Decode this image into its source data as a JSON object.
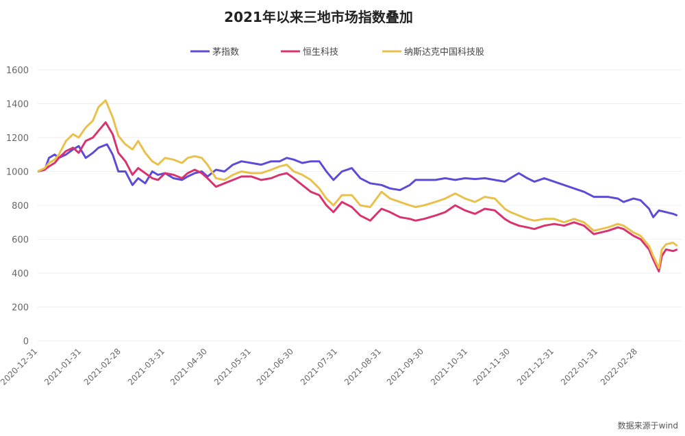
{
  "chart_data": {
    "type": "line",
    "title": "2021年以来三地市场指数叠加",
    "source": "数据来源于wind",
    "ylim": [
      0,
      1600
    ],
    "yticks": [
      0,
      200,
      400,
      600,
      800,
      1000,
      1200,
      1400,
      1600
    ],
    "legend_position": "top",
    "grid": "horizontal",
    "x_tick_labels": [
      "2020-12-31",
      "2021-01-31",
      "2021-02-28",
      "2021-03-31",
      "2021-04-30",
      "2021-05-31",
      "2021-06-30",
      "2021-07-31",
      "2021-08-31",
      "2021-09-30",
      "2021-10-31",
      "2021-11-30",
      "2021-12-31",
      "2022-01-31",
      "2022-02-28"
    ],
    "series": [
      {
        "name": "茅指数",
        "color": "#5b4bd6",
        "points": [
          [
            "2020-12-31",
            1000
          ],
          [
            "2021-01-05",
            1010
          ],
          [
            "2021-01-08",
            1080
          ],
          [
            "2021-01-12",
            1100
          ],
          [
            "2021-01-15",
            1080
          ],
          [
            "2021-01-20",
            1100
          ],
          [
            "2021-01-25",
            1130
          ],
          [
            "2021-01-29",
            1150
          ],
          [
            "2021-02-03",
            1080
          ],
          [
            "2021-02-08",
            1110
          ],
          [
            "2021-02-12",
            1140
          ],
          [
            "2021-02-18",
            1160
          ],
          [
            "2021-02-22",
            1100
          ],
          [
            "2021-02-26",
            1000
          ],
          [
            "2021-03-03",
            1000
          ],
          [
            "2021-03-08",
            920
          ],
          [
            "2021-03-12",
            960
          ],
          [
            "2021-03-17",
            930
          ],
          [
            "2021-03-22",
            1000
          ],
          [
            "2021-03-26",
            980
          ],
          [
            "2021-03-31",
            990
          ],
          [
            "2021-04-06",
            960
          ],
          [
            "2021-04-12",
            950
          ],
          [
            "2021-04-16",
            970
          ],
          [
            "2021-04-21",
            990
          ],
          [
            "2021-04-26",
            1000
          ],
          [
            "2021-04-30",
            970
          ],
          [
            "2021-05-06",
            1010
          ],
          [
            "2021-05-12",
            1000
          ],
          [
            "2021-05-18",
            1040
          ],
          [
            "2021-05-24",
            1060
          ],
          [
            "2021-05-31",
            1050
          ],
          [
            "2021-06-07",
            1040
          ],
          [
            "2021-06-14",
            1060
          ],
          [
            "2021-06-20",
            1060
          ],
          [
            "2021-06-25",
            1080
          ],
          [
            "2021-06-30",
            1070
          ],
          [
            "2021-07-06",
            1050
          ],
          [
            "2021-07-12",
            1060
          ],
          [
            "2021-07-18",
            1060
          ],
          [
            "2021-07-23",
            1000
          ],
          [
            "2021-07-28",
            950
          ],
          [
            "2021-08-03",
            1000
          ],
          [
            "2021-08-10",
            1020
          ],
          [
            "2021-08-16",
            960
          ],
          [
            "2021-08-23",
            930
          ],
          [
            "2021-08-31",
            920
          ],
          [
            "2021-09-06",
            900
          ],
          [
            "2021-09-13",
            890
          ],
          [
            "2021-09-20",
            920
          ],
          [
            "2021-09-24",
            950
          ],
          [
            "2021-09-30",
            950
          ],
          [
            "2021-10-08",
            950
          ],
          [
            "2021-10-15",
            960
          ],
          [
            "2021-10-22",
            950
          ],
          [
            "2021-10-29",
            960
          ],
          [
            "2021-11-05",
            955
          ],
          [
            "2021-11-12",
            960
          ],
          [
            "2021-11-19",
            950
          ],
          [
            "2021-11-26",
            940
          ],
          [
            "2021-11-30",
            960
          ],
          [
            "2021-12-06",
            990
          ],
          [
            "2021-12-12",
            960
          ],
          [
            "2021-12-17",
            940
          ],
          [
            "2021-12-24",
            960
          ],
          [
            "2021-12-31",
            940
          ],
          [
            "2022-01-07",
            920
          ],
          [
            "2022-01-14",
            900
          ],
          [
            "2022-01-21",
            880
          ],
          [
            "2022-01-28",
            850
          ],
          [
            "2022-02-07",
            850
          ],
          [
            "2022-02-14",
            840
          ],
          [
            "2022-02-18",
            820
          ],
          [
            "2022-02-25",
            840
          ],
          [
            "2022-03-02",
            830
          ],
          [
            "2022-03-08",
            780
          ],
          [
            "2022-03-11",
            730
          ],
          [
            "2022-03-15",
            770
          ],
          [
            "2022-03-20",
            760
          ],
          [
            "2022-03-25",
            750
          ],
          [
            "2022-03-28",
            740
          ]
        ]
      },
      {
        "name": "恒生科技",
        "color": "#d8336f",
        "points": [
          [
            "2020-12-31",
            1000
          ],
          [
            "2021-01-05",
            1010
          ],
          [
            "2021-01-08",
            1030
          ],
          [
            "2021-01-12",
            1050
          ],
          [
            "2021-01-15",
            1080
          ],
          [
            "2021-01-20",
            1120
          ],
          [
            "2021-01-25",
            1140
          ],
          [
            "2021-01-29",
            1110
          ],
          [
            "2021-02-03",
            1180
          ],
          [
            "2021-02-08",
            1200
          ],
          [
            "2021-02-12",
            1240
          ],
          [
            "2021-02-17",
            1290
          ],
          [
            "2021-02-22",
            1220
          ],
          [
            "2021-02-26",
            1110
          ],
          [
            "2021-03-03",
            1060
          ],
          [
            "2021-03-08",
            980
          ],
          [
            "2021-03-12",
            1020
          ],
          [
            "2021-03-17",
            990
          ],
          [
            "2021-03-22",
            960
          ],
          [
            "2021-03-26",
            950
          ],
          [
            "2021-03-31",
            990
          ],
          [
            "2021-04-06",
            980
          ],
          [
            "2021-04-12",
            960
          ],
          [
            "2021-04-16",
            990
          ],
          [
            "2021-04-21",
            1010
          ],
          [
            "2021-04-26",
            990
          ],
          [
            "2021-04-30",
            960
          ],
          [
            "2021-05-06",
            910
          ],
          [
            "2021-05-12",
            930
          ],
          [
            "2021-05-18",
            950
          ],
          [
            "2021-05-24",
            970
          ],
          [
            "2021-05-31",
            970
          ],
          [
            "2021-06-07",
            950
          ],
          [
            "2021-06-14",
            960
          ],
          [
            "2021-06-20",
            980
          ],
          [
            "2021-06-25",
            990
          ],
          [
            "2021-06-30",
            960
          ],
          [
            "2021-07-06",
            920
          ],
          [
            "2021-07-12",
            880
          ],
          [
            "2021-07-18",
            860
          ],
          [
            "2021-07-23",
            800
          ],
          [
            "2021-07-28",
            760
          ],
          [
            "2021-08-03",
            820
          ],
          [
            "2021-08-10",
            790
          ],
          [
            "2021-08-16",
            740
          ],
          [
            "2021-08-23",
            710
          ],
          [
            "2021-08-31",
            780
          ],
          [
            "2021-09-06",
            760
          ],
          [
            "2021-09-13",
            730
          ],
          [
            "2021-09-20",
            720
          ],
          [
            "2021-09-24",
            710
          ],
          [
            "2021-09-30",
            720
          ],
          [
            "2021-10-08",
            740
          ],
          [
            "2021-10-15",
            760
          ],
          [
            "2021-10-22",
            800
          ],
          [
            "2021-10-29",
            770
          ],
          [
            "2021-11-05",
            750
          ],
          [
            "2021-11-12",
            780
          ],
          [
            "2021-11-19",
            770
          ],
          [
            "2021-11-26",
            720
          ],
          [
            "2021-11-30",
            700
          ],
          [
            "2021-12-06",
            680
          ],
          [
            "2021-12-12",
            670
          ],
          [
            "2021-12-17",
            660
          ],
          [
            "2021-12-24",
            680
          ],
          [
            "2021-12-31",
            690
          ],
          [
            "2022-01-07",
            680
          ],
          [
            "2022-01-14",
            700
          ],
          [
            "2022-01-21",
            680
          ],
          [
            "2022-01-28",
            630
          ],
          [
            "2022-02-07",
            650
          ],
          [
            "2022-02-14",
            670
          ],
          [
            "2022-02-18",
            660
          ],
          [
            "2022-02-25",
            620
          ],
          [
            "2022-03-02",
            600
          ],
          [
            "2022-03-08",
            540
          ],
          [
            "2022-03-11",
            480
          ],
          [
            "2022-03-15",
            410
          ],
          [
            "2022-03-17",
            500
          ],
          [
            "2022-03-20",
            540
          ],
          [
            "2022-03-25",
            530
          ],
          [
            "2022-03-28",
            540
          ]
        ]
      },
      {
        "name": "纳斯达克中国科技股",
        "color": "#e8c04a",
        "points": [
          [
            "2020-12-31",
            1000
          ],
          [
            "2021-01-05",
            1020
          ],
          [
            "2021-01-08",
            1050
          ],
          [
            "2021-01-12",
            1070
          ],
          [
            "2021-01-15",
            1100
          ],
          [
            "2021-01-20",
            1180
          ],
          [
            "2021-01-25",
            1220
          ],
          [
            "2021-01-29",
            1200
          ],
          [
            "2021-02-03",
            1260
          ],
          [
            "2021-02-08",
            1300
          ],
          [
            "2021-02-12",
            1380
          ],
          [
            "2021-02-17",
            1420
          ],
          [
            "2021-02-22",
            1320
          ],
          [
            "2021-02-26",
            1210
          ],
          [
            "2021-03-03",
            1160
          ],
          [
            "2021-03-08",
            1130
          ],
          [
            "2021-03-12",
            1180
          ],
          [
            "2021-03-17",
            1110
          ],
          [
            "2021-03-22",
            1060
          ],
          [
            "2021-03-26",
            1040
          ],
          [
            "2021-03-31",
            1080
          ],
          [
            "2021-04-06",
            1070
          ],
          [
            "2021-04-12",
            1050
          ],
          [
            "2021-04-16",
            1080
          ],
          [
            "2021-04-21",
            1090
          ],
          [
            "2021-04-26",
            1080
          ],
          [
            "2021-04-30",
            1040
          ],
          [
            "2021-05-06",
            960
          ],
          [
            "2021-05-12",
            950
          ],
          [
            "2021-05-18",
            980
          ],
          [
            "2021-05-24",
            1000
          ],
          [
            "2021-05-31",
            990
          ],
          [
            "2021-06-07",
            990
          ],
          [
            "2021-06-14",
            1010
          ],
          [
            "2021-06-20",
            1030
          ],
          [
            "2021-06-25",
            1040
          ],
          [
            "2021-06-30",
            1000
          ],
          [
            "2021-07-06",
            980
          ],
          [
            "2021-07-12",
            950
          ],
          [
            "2021-07-18",
            900
          ],
          [
            "2021-07-23",
            840
          ],
          [
            "2021-07-28",
            800
          ],
          [
            "2021-08-03",
            860
          ],
          [
            "2021-08-10",
            860
          ],
          [
            "2021-08-16",
            800
          ],
          [
            "2021-08-23",
            790
          ],
          [
            "2021-08-31",
            880
          ],
          [
            "2021-09-06",
            840
          ],
          [
            "2021-09-13",
            820
          ],
          [
            "2021-09-20",
            800
          ],
          [
            "2021-09-24",
            790
          ],
          [
            "2021-09-30",
            800
          ],
          [
            "2021-10-08",
            820
          ],
          [
            "2021-10-15",
            840
          ],
          [
            "2021-10-22",
            870
          ],
          [
            "2021-10-29",
            840
          ],
          [
            "2021-11-05",
            820
          ],
          [
            "2021-11-12",
            850
          ],
          [
            "2021-11-19",
            840
          ],
          [
            "2021-11-26",
            780
          ],
          [
            "2021-11-30",
            760
          ],
          [
            "2021-12-06",
            740
          ],
          [
            "2021-12-12",
            720
          ],
          [
            "2021-12-17",
            710
          ],
          [
            "2021-12-24",
            720
          ],
          [
            "2021-12-31",
            720
          ],
          [
            "2022-01-07",
            700
          ],
          [
            "2022-01-14",
            720
          ],
          [
            "2022-01-21",
            700
          ],
          [
            "2022-01-28",
            650
          ],
          [
            "2022-02-07",
            670
          ],
          [
            "2022-02-14",
            690
          ],
          [
            "2022-02-18",
            680
          ],
          [
            "2022-02-25",
            640
          ],
          [
            "2022-03-02",
            620
          ],
          [
            "2022-03-08",
            560
          ],
          [
            "2022-03-11",
            500
          ],
          [
            "2022-03-15",
            430
          ],
          [
            "2022-03-17",
            540
          ],
          [
            "2022-03-20",
            570
          ],
          [
            "2022-03-25",
            580
          ],
          [
            "2022-03-28",
            560
          ]
        ]
      }
    ]
  }
}
